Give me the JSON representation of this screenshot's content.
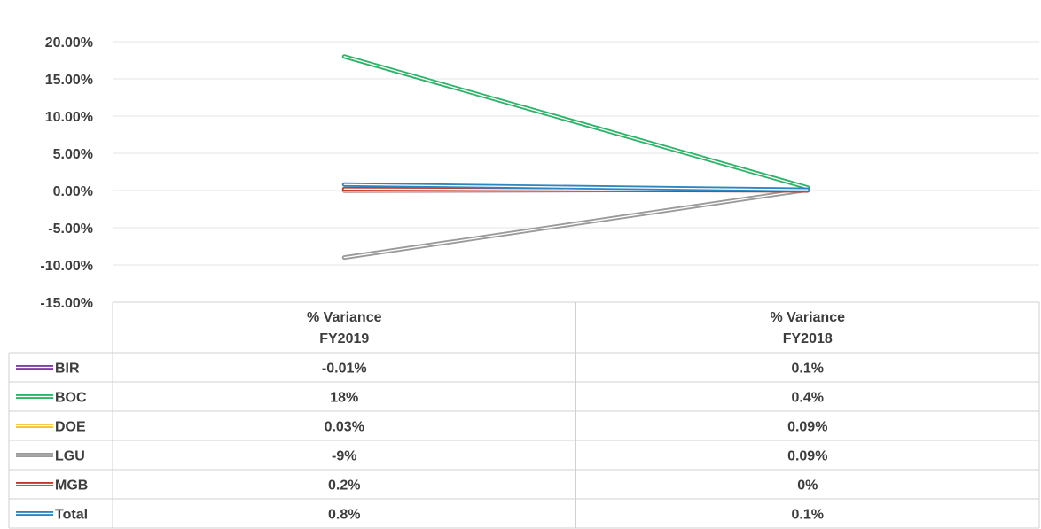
{
  "chart_data": {
    "type": "line",
    "categories": [
      "% Variance FY2019",
      "% Variance FY2018"
    ],
    "category_lines": [
      [
        "% Variance",
        "FY2019"
      ],
      [
        "% Variance",
        "FY2018"
      ]
    ],
    "ylim": [
      -15,
      20
    ],
    "y_ticks": [
      20,
      15,
      10,
      5,
      0,
      -5,
      -10,
      -15
    ],
    "y_tick_labels": [
      "20.00%",
      "15.00%",
      "10.00%",
      "5.00%",
      "0.00%",
      "-5.00%",
      "-10.00%",
      "-15.00%"
    ],
    "grid": true,
    "legend": "data-table-below",
    "series": [
      {
        "name": "BIR",
        "color": "#7b3fa0",
        "values": [
          -0.01,
          0.1
        ],
        "labels": [
          "-0.01%",
          "0.1%"
        ]
      },
      {
        "name": "BOC",
        "color": "#2fb36a",
        "values": [
          18,
          0.4
        ],
        "labels": [
          "18%",
          "0.4%"
        ]
      },
      {
        "name": "DOE",
        "color": "#f2c12e",
        "values": [
          0.03,
          0.09
        ],
        "labels": [
          "0.03%",
          "0.09%"
        ]
      },
      {
        "name": "LGU",
        "color": "#9a9a9a",
        "values": [
          -9,
          0.09
        ],
        "labels": [
          "-9%",
          "0.09%"
        ]
      },
      {
        "name": "MGB",
        "color": "#c0392b",
        "values": [
          0.2,
          0
        ],
        "labels": [
          "0.2%",
          "0%"
        ]
      },
      {
        "name": "Total",
        "color": "#2e86c1",
        "values": [
          0.8,
          0.1
        ],
        "labels": [
          "0.8%",
          "0.1%"
        ]
      }
    ]
  }
}
